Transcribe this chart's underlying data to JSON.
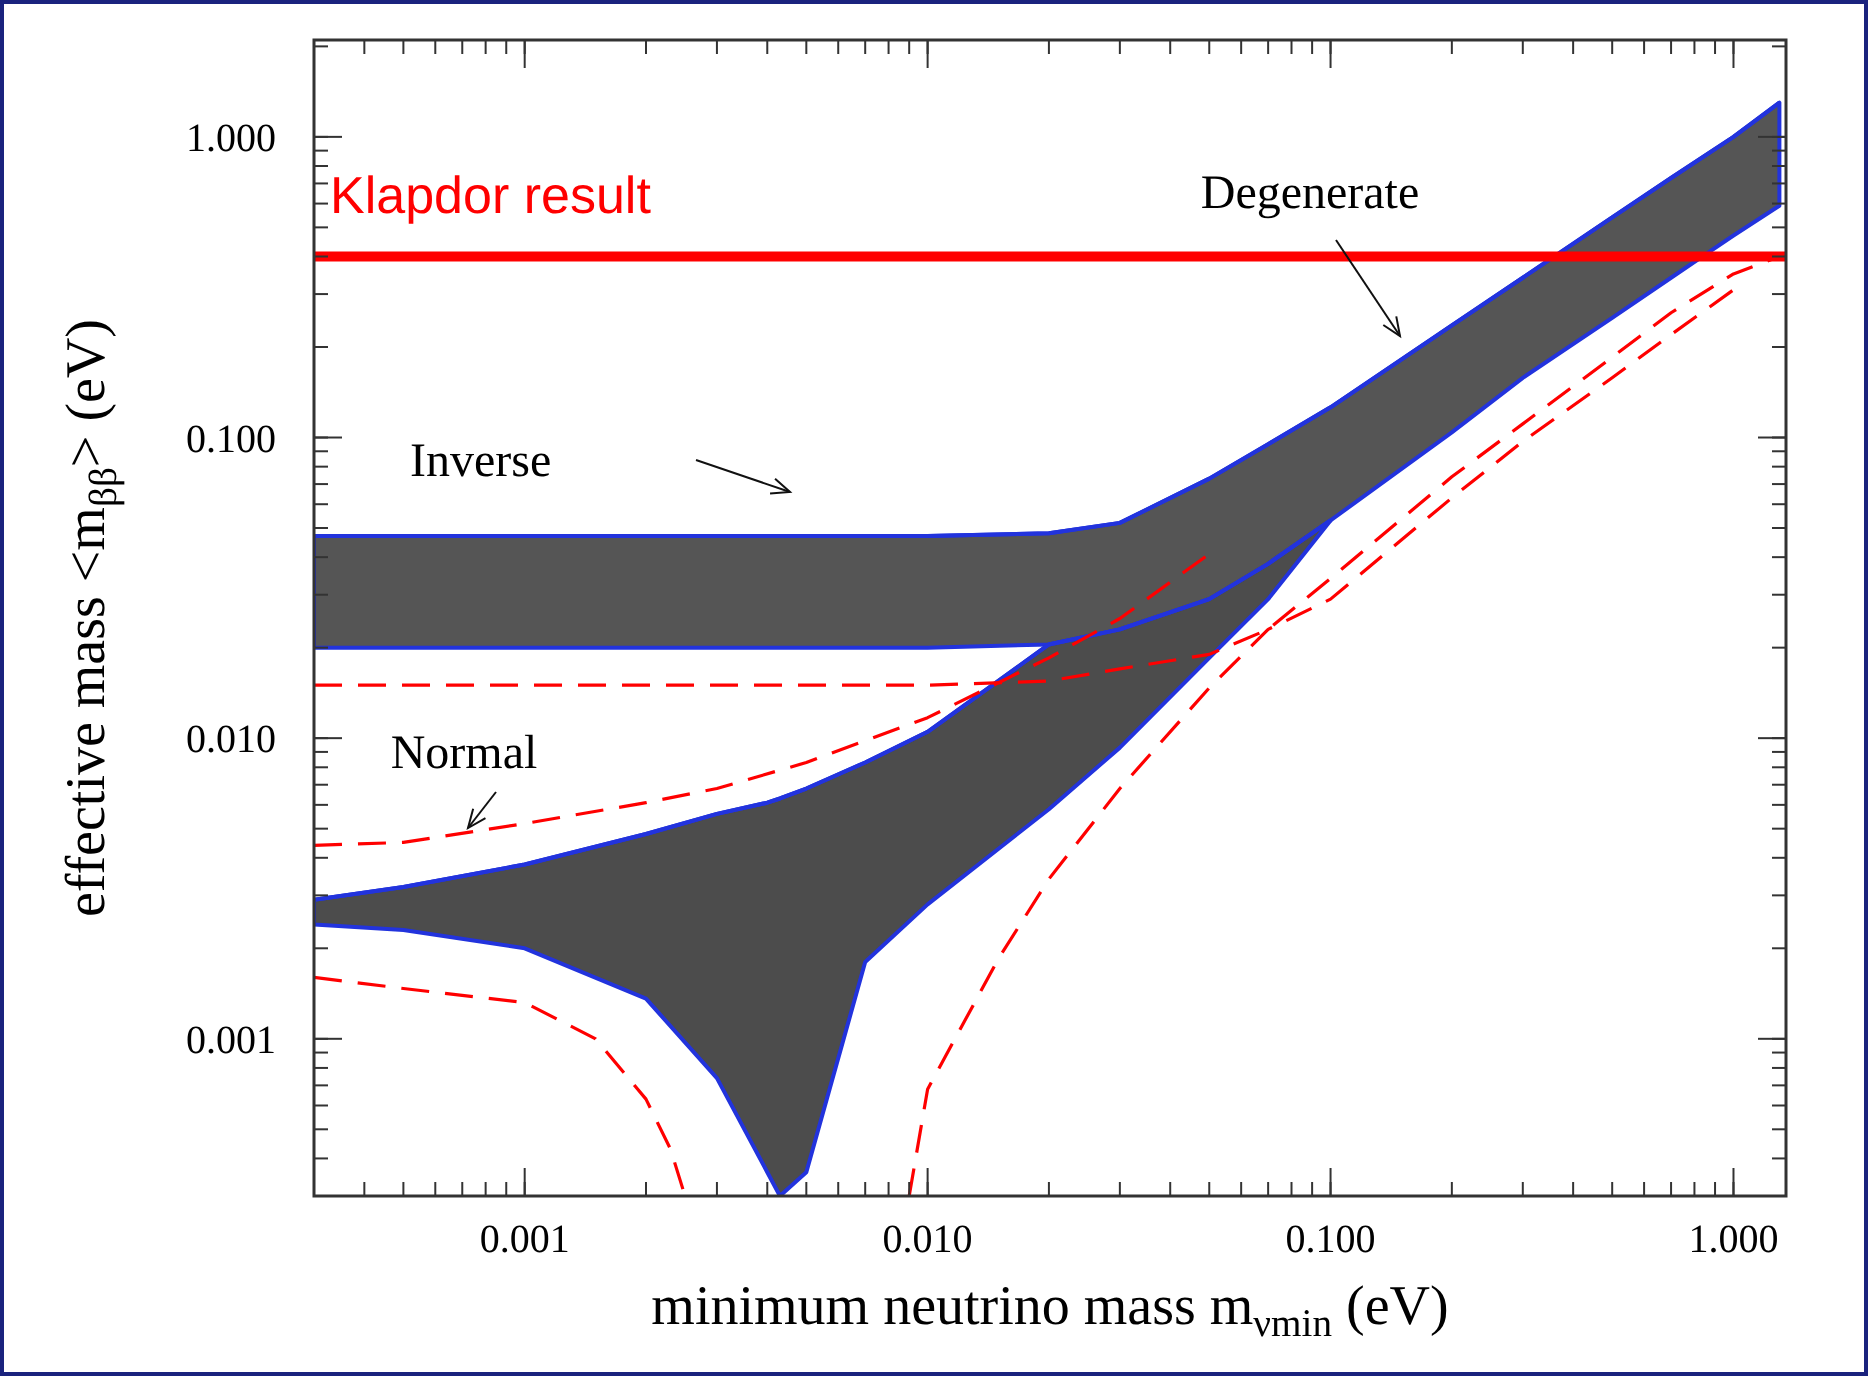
{
  "chart_data": {
    "type": "line",
    "xlabel": "minimum neutrino mass  m$_{ν}$$_{min}$ (eV)",
    "ylabel": "effective mass <m$_{ββ}$> (eV)",
    "log": "xy",
    "xlim": [
      0.0003,
      1.35
    ],
    "ylim": [
      0.0003,
      2.1
    ],
    "xticks": [
      {
        "value": 0.001,
        "label": "0.001"
      },
      {
        "value": 0.01,
        "label": "0.010"
      },
      {
        "value": 0.1,
        "label": "0.100"
      },
      {
        "value": 1,
        "label": "1.000"
      }
    ],
    "yticks": [
      {
        "value": 0.001,
        "label": "0.001"
      },
      {
        "value": 0.01,
        "label": "0.010"
      },
      {
        "value": 0.1,
        "label": "0.100"
      },
      {
        "value": 1,
        "label": "1.000"
      }
    ],
    "grid": false,
    "series": [
      {
        "color": "#2233dd",
        "x": [
          0.0003,
          0.0005,
          0.001,
          0.002,
          0.005,
          0.01,
          0.02,
          0.03,
          0.05,
          0.07,
          0.1,
          0.2,
          0.3,
          0.5,
          0.7,
          1,
          1.3
        ],
        "values": [
          0.047,
          0.047,
          0.047,
          0.047,
          0.047,
          0.047,
          0.048,
          0.052,
          0.073,
          0.095,
          0.126,
          0.236,
          0.34,
          0.54,
          0.73,
          1.0,
          1.3
        ],
        "upper": [
          0.047,
          0.047,
          0.047,
          0.047,
          0.047,
          0.047,
          0.048,
          0.052,
          0.073,
          0.095,
          0.126,
          0.236,
          0.34,
          0.54,
          0.73,
          1.0,
          1.3
        ],
        "lower": [
          0.02,
          0.02,
          0.02,
          0.02,
          0.02,
          0.02,
          0.0205,
          0.023,
          0.029,
          0.038,
          0.053,
          0.104,
          0.158,
          0.25,
          0.34,
          0.47,
          0.59
        ]
      },
      {
        "color": "#2233dd",
        "x": [
          0.0003,
          0.0005,
          0.001,
          0.002,
          0.003,
          0.004,
          0.0043,
          0.005,
          0.007,
          0.01,
          0.02,
          0.03,
          0.05,
          0.07,
          0.1
        ],
        "values": [
          0.0029,
          0.0032,
          0.0038,
          0.0048,
          0.0056,
          0.0061,
          0.0063,
          0.0068,
          0.0083,
          0.0105,
          0.0205,
          0.023,
          0.029,
          0.038,
          0.053
        ],
        "upper": [
          0.0029,
          0.0032,
          0.0038,
          0.0048,
          0.0056,
          0.0061,
          0.0063,
          0.0068,
          0.0083,
          0.0105,
          0.0205,
          0.023,
          0.029,
          0.038,
          0.053
        ],
        "lower": [
          0.0024,
          0.0023,
          0.002,
          0.00136,
          0.00074,
          0.00036,
          0.0003,
          0.00036,
          0.0018,
          0.0028,
          0.0058,
          0.0093,
          0.0185,
          0.029,
          0.053
        ]
      },
      {
        "color": "#ff0000",
        "line_style": "dashed",
        "x": [
          0.0003,
          0.0005,
          0.001,
          0.002,
          0.003,
          0.005,
          0.01,
          0.02,
          0.03,
          0.05
        ],
        "values": [
          0.0044,
          0.0045,
          0.0052,
          0.0061,
          0.0068,
          0.0083,
          0.0117,
          0.0185,
          0.025,
          0.041
        ]
      },
      {
        "color": "#ff0000",
        "line_style": "dashed",
        "x": [
          0.0003,
          0.001,
          0.01,
          0.02,
          0.03,
          0.05,
          0.07,
          0.1,
          0.2,
          0.3,
          0.5,
          0.7,
          1,
          1.3
        ],
        "values": [
          0.015,
          0.015,
          0.015,
          0.0155,
          0.017,
          0.019,
          0.023,
          0.034,
          0.074,
          0.111,
          0.185,
          0.26,
          0.35,
          0.4
        ]
      },
      {
        "color": "#ff0000",
        "line_style": "dashed",
        "x": [
          0.009,
          0.01,
          0.015,
          0.02,
          0.03,
          0.05,
          0.07,
          0.1,
          0.2,
          0.3,
          0.5,
          0.7,
          1
        ],
        "values": [
          0.0003,
          0.00068,
          0.00185,
          0.0034,
          0.0068,
          0.0147,
          0.023,
          0.029,
          0.063,
          0.097,
          0.158,
          0.22,
          0.31
        ]
      },
      {
        "color": "#ff0000",
        "line_style": "dashed",
        "x": [
          0.0003,
          0.0005,
          0.001,
          0.0015,
          0.002,
          0.0023,
          0.0025
        ],
        "values": [
          0.0016,
          0.00147,
          0.00132,
          0.001,
          0.00063,
          0.00043,
          0.0003
        ]
      }
    ],
    "ref_lines": [
      {
        "axis": "y",
        "value": 0.4,
        "label": "Klapdor result",
        "color": "#ff0000"
      }
    ],
    "annotations": [
      "Degenerate",
      "Inverse",
      "Normal"
    ]
  }
}
